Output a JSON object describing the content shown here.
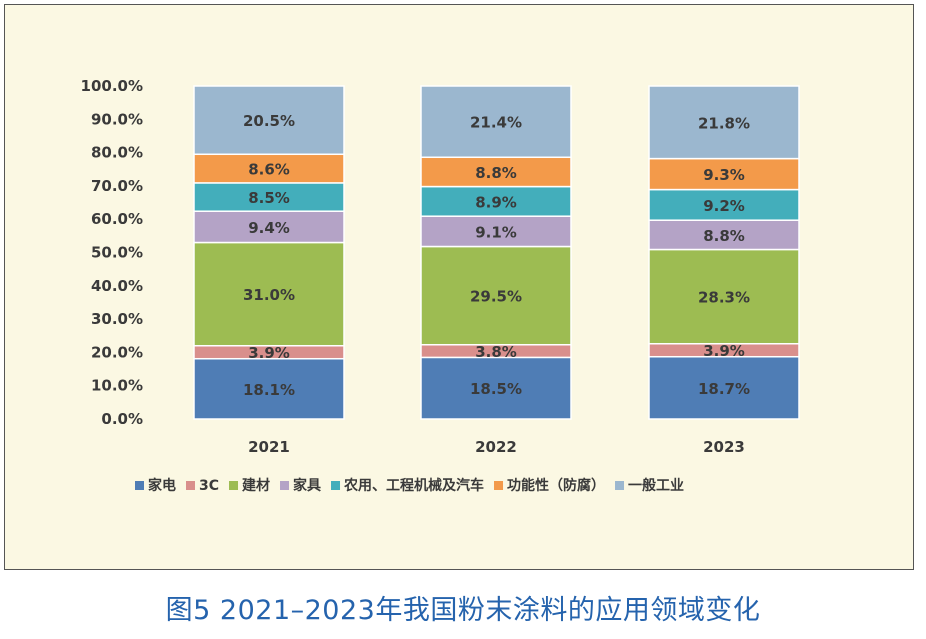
{
  "caption": "图5 2021–2023年我国粉末涂料的应用领域变化",
  "chart_data": {
    "type": "bar",
    "stacked": true,
    "categories": [
      "2021",
      "2022",
      "2023"
    ],
    "y_ticks": [
      "0.0%",
      "10.0%",
      "20.0%",
      "30.0%",
      "40.0%",
      "50.0%",
      "60.0%",
      "70.0%",
      "80.0%",
      "90.0%",
      "100.0%"
    ],
    "ylim": [
      0,
      100
    ],
    "legend_position": "bottom",
    "series": [
      {
        "name": "家电",
        "color": "#4f7db5",
        "values": [
          18.1,
          18.5,
          18.7
        ],
        "labels": [
          "18.1%",
          "18.5%",
          "18.7%"
        ]
      },
      {
        "name": "3C",
        "color": "#d98f8c",
        "values": [
          3.9,
          3.8,
          3.9
        ],
        "labels": [
          "3.9%",
          "3.8%",
          "3.9%"
        ]
      },
      {
        "name": "建材",
        "color": "#9dbc52",
        "values": [
          31.0,
          29.5,
          28.3
        ],
        "labels": [
          "31.0%",
          "29.5%",
          "28.3%"
        ]
      },
      {
        "name": "家具",
        "color": "#b4a3c6",
        "values": [
          9.4,
          9.1,
          8.8
        ],
        "labels": [
          "9.4%",
          "9.1%",
          "8.8%"
        ]
      },
      {
        "name": "农用、工程机械及汽车",
        "color": "#43aebb",
        "values": [
          8.5,
          8.9,
          9.2
        ],
        "labels": [
          "8.5%",
          "8.9%",
          "9.2%"
        ]
      },
      {
        "name": "功能性（防腐）",
        "color": "#f39a4a",
        "values": [
          8.6,
          8.8,
          9.3
        ],
        "labels": [
          "8.6%",
          "8.8%",
          "9.3%"
        ]
      },
      {
        "name": "一般工业",
        "color": "#9bb7cf",
        "values": [
          20.5,
          21.4,
          21.8
        ],
        "labels": [
          "20.5%",
          "21.4%",
          "21.8%"
        ]
      }
    ]
  }
}
